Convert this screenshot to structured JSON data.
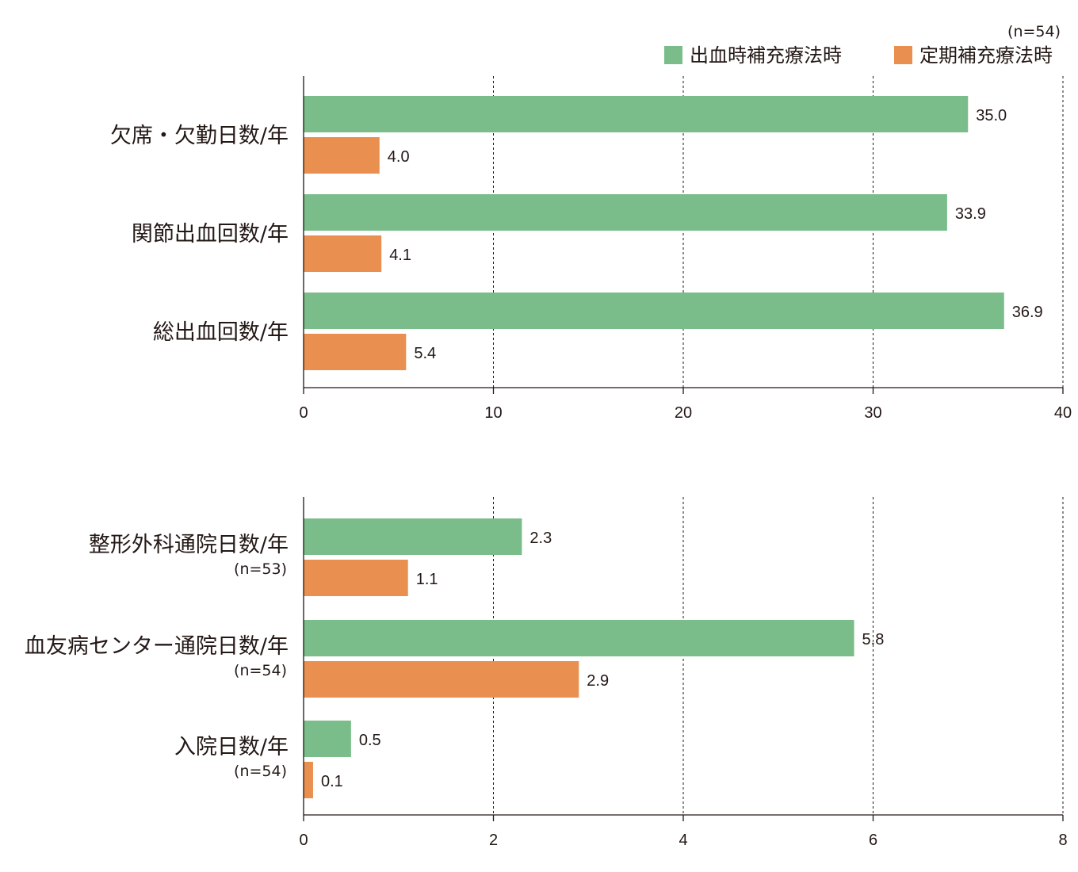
{
  "sample_note": "(n=54)",
  "legend": [
    {
      "name": "出血時補充療法時",
      "color": "#7bbd8a"
    },
    {
      "name": "定期補充療法時",
      "color": "#e99051"
    }
  ],
  "chart_data": [
    {
      "type": "bar",
      "orientation": "horizontal",
      "categories": [
        "欠席・欠勤日数/年",
        "関節出血回数/年",
        "総出血回数/年"
      ],
      "category_notes": [
        "",
        "",
        ""
      ],
      "series": [
        {
          "name": "出血時補充療法時",
          "values": [
            35.0,
            33.9,
            36.9
          ]
        },
        {
          "name": "定期補充療法時",
          "values": [
            4.0,
            4.1,
            5.4
          ]
        }
      ],
      "value_labels": [
        [
          "35.0",
          "33.9",
          "36.9"
        ],
        [
          "4.0",
          "4.1",
          "5.4"
        ]
      ],
      "xlim": [
        0,
        40
      ],
      "xticks": [
        0,
        10,
        20,
        30,
        40
      ],
      "grid": "vertical-dashed"
    },
    {
      "type": "bar",
      "orientation": "horizontal",
      "categories": [
        "整形外科通院日数/年",
        "血友病センター通院日数/年",
        "入院日数/年"
      ],
      "category_notes": [
        "(n=53)",
        "(n=54)",
        "(n=54)"
      ],
      "series": [
        {
          "name": "出血時補充療法時",
          "values": [
            2.3,
            5.8,
            0.5
          ]
        },
        {
          "name": "定期補充療法時",
          "values": [
            1.1,
            2.9,
            0.1
          ]
        }
      ],
      "value_labels": [
        [
          "2.3",
          "5.8",
          "0.5"
        ],
        [
          "1.1",
          "2.9",
          "0.1"
        ]
      ],
      "xlim": [
        0,
        8
      ],
      "xticks": [
        0,
        2,
        4,
        6,
        8
      ],
      "grid": "vertical-dashed"
    }
  ]
}
